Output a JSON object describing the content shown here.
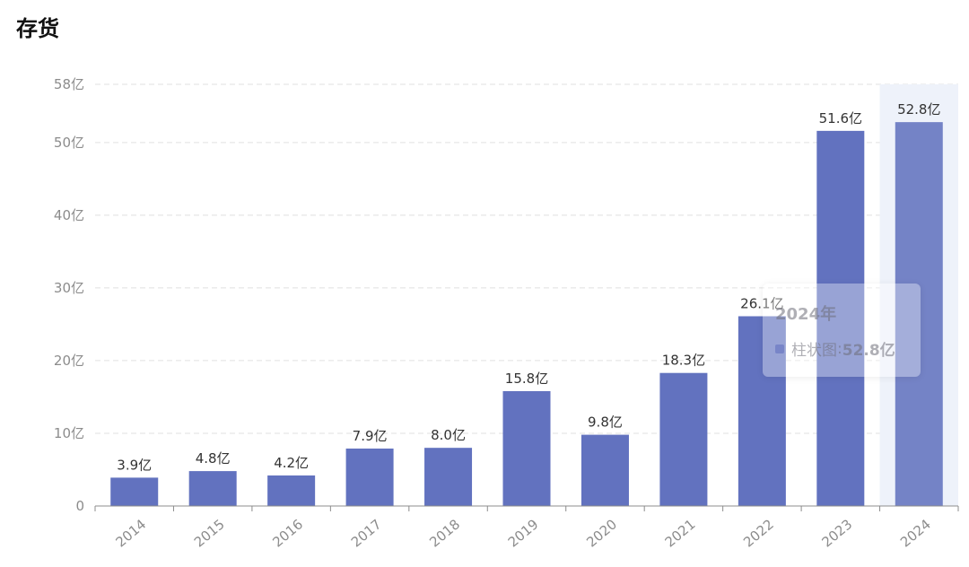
{
  "title": "存货",
  "colors": {
    "bar": "#6272bf",
    "bar_highlight": "#7483c6",
    "hover_band": "#eef2fa"
  },
  "tooltip": {
    "title": "2024年",
    "series": "柱状图",
    "separator": ":",
    "value": "52.8亿"
  },
  "chart_data": {
    "type": "bar",
    "categories": [
      "2014",
      "2015",
      "2016",
      "2017",
      "2018",
      "2019",
      "2020",
      "2021",
      "2022",
      "2023",
      "2024"
    ],
    "values": [
      3.9,
      4.8,
      4.2,
      7.9,
      8.0,
      15.8,
      9.8,
      18.3,
      26.1,
      51.6,
      52.8
    ],
    "data_labels": [
      "3.9亿",
      "4.8亿",
      "4.2亿",
      "7.9亿",
      "8.0亿",
      "15.8亿",
      "9.8亿",
      "18.3亿",
      "26.1亿",
      "51.6亿",
      "52.8亿"
    ],
    "yticks": [
      0,
      10,
      20,
      30,
      40,
      50,
      58
    ],
    "ytick_labels": [
      "0",
      "10亿",
      "20亿",
      "30亿",
      "40亿",
      "50亿",
      "58亿"
    ],
    "ylim": [
      0,
      58
    ],
    "grid": true,
    "highlighted_category": "2024"
  }
}
